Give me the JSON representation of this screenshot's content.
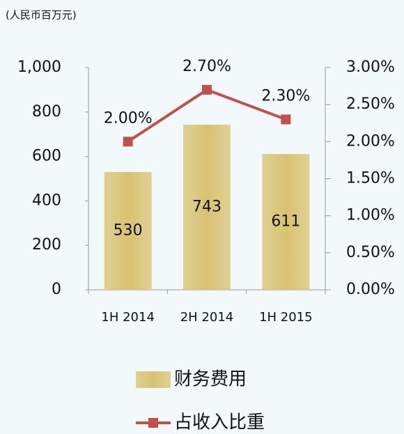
{
  "chart_data": {
    "type": "bar_line",
    "subtitle": "(人民币百万元)",
    "categories": [
      "1H 2014",
      "2H 2014",
      "1H 2015"
    ],
    "series": [
      {
        "name": "财务费用",
        "type": "bar",
        "color": "#d9c371",
        "values": [
          530,
          743,
          611
        ]
      },
      {
        "name": "占收入比重",
        "type": "line",
        "axis": "y2",
        "color": "#c0504d",
        "values": [
          2.0,
          2.7,
          2.3
        ],
        "value_labels": [
          "2.00%",
          "2.70%",
          "2.30%"
        ]
      }
    ],
    "ylim": [
      0,
      1000
    ],
    "yticks": [
      0,
      200,
      400,
      600,
      800,
      {
        "value": 1000,
        "label": "1,000"
      }
    ],
    "y2lim": [
      0,
      3
    ],
    "y2ticks": [
      {
        "value": 0,
        "label": "0.00%"
      },
      {
        "value": 0.5,
        "label": "0.50%"
      },
      {
        "value": 1,
        "label": "1.00%"
      },
      {
        "value": 1.5,
        "label": "1.50%"
      },
      {
        "value": 2,
        "label": "2.00%"
      },
      {
        "value": 2.5,
        "label": "2.50%"
      },
      {
        "value": 3,
        "label": "3.00%"
      }
    ],
    "legend": "bottom"
  }
}
